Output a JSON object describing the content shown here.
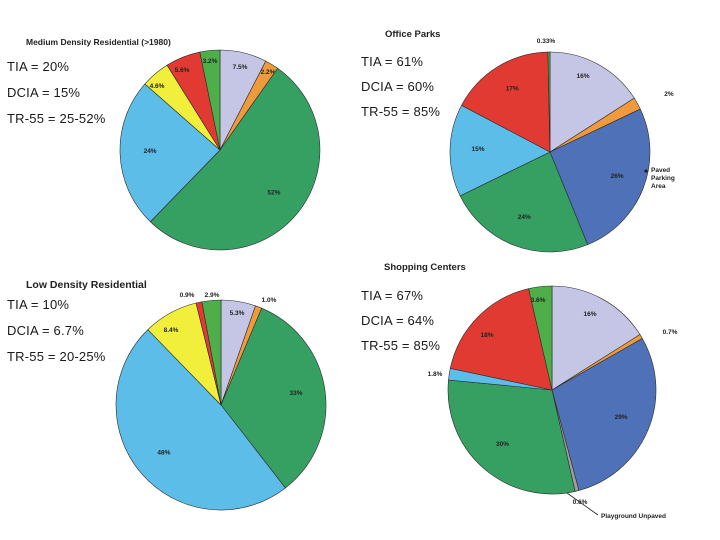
{
  "colors": {
    "lavender": "#c5c6e6",
    "orange": "#ef9a3c",
    "green": "#36a062",
    "cyan": "#5cbde8",
    "yellow": "#f2ee3c",
    "red": "#e03a33",
    "lime": "#4dae4a",
    "blue": "#4f71b7",
    "gray": "#9d9d9d"
  },
  "chart_data": [
    {
      "type": "pie",
      "title": "Medium Density Residential (>1980)",
      "stats": [
        "TIA = 20%",
        "DCIA = 15%",
        "TR-55 = 25-52%"
      ],
      "slices": [
        {
          "label": "7.5%",
          "value": 7.5,
          "color": "lavender"
        },
        {
          "label": "2.2%",
          "value": 2.2,
          "color": "orange"
        },
        {
          "label": "52%",
          "value": 52,
          "color": "green"
        },
        {
          "label": "24%",
          "value": 24,
          "color": "cyan"
        },
        {
          "label": "4.6%",
          "value": 4.6,
          "color": "yellow"
        },
        {
          "label": "5.6%",
          "value": 5.6,
          "color": "red"
        },
        {
          "label": "3.2%",
          "value": 3.2,
          "color": "lime"
        }
      ]
    },
    {
      "type": "pie",
      "title": "Office Parks",
      "stats": [
        "TIA = 61%",
        "DCIA = 60%",
        "TR-55 = 85%"
      ],
      "slices": [
        {
          "label": "16%",
          "value": 16,
          "color": "lavender"
        },
        {
          "label": "2%",
          "value": 2,
          "color": "orange"
        },
        {
          "label": "26%",
          "value": 26,
          "color": "blue",
          "annotation": "Paved Parking Area"
        },
        {
          "label": "24%",
          "value": 24,
          "color": "green"
        },
        {
          "label": "15%",
          "value": 15,
          "color": "cyan"
        },
        {
          "label": "17%",
          "value": 17,
          "color": "red"
        },
        {
          "label": "0.33%",
          "value": 0.33,
          "color": "lime"
        }
      ]
    },
    {
      "type": "pie",
      "title": "Low Density Residential",
      "stats": [
        "TIA = 10%",
        "DCIA = 6.7%",
        "TR-55 = 20-25%"
      ],
      "slices": [
        {
          "label": "5.3%",
          "value": 5.3,
          "color": "lavender"
        },
        {
          "label": "1.0%",
          "value": 1.0,
          "color": "orange"
        },
        {
          "label": "33%",
          "value": 33,
          "color": "green"
        },
        {
          "label": "48%",
          "value": 48,
          "color": "cyan"
        },
        {
          "label": "8.4%",
          "value": 8.4,
          "color": "yellow"
        },
        {
          "label": "0.9%",
          "value": 0.9,
          "color": "red"
        },
        {
          "label": "2.9%",
          "value": 2.9,
          "color": "lime"
        }
      ]
    },
    {
      "type": "pie",
      "title": "Shopping Centers",
      "stats": [
        "TIA = 67%",
        "DCIA = 64%",
        "TR-55 = 85%"
      ],
      "slices": [
        {
          "label": "16%",
          "value": 16,
          "color": "lavender"
        },
        {
          "label": "0.7%",
          "value": 0.7,
          "color": "orange"
        },
        {
          "label": "29%",
          "value": 29,
          "color": "blue"
        },
        {
          "label": "0.6%",
          "value": 0.6,
          "color": "gray",
          "annotation": "Playground Unpaved"
        },
        {
          "label": "30%",
          "value": 30,
          "color": "green"
        },
        {
          "label": "1.8%",
          "value": 1.8,
          "color": "cyan"
        },
        {
          "label": "18%",
          "value": 18,
          "color": "red"
        },
        {
          "label": "3.6%",
          "value": 3.6,
          "color": "lime"
        }
      ]
    }
  ]
}
